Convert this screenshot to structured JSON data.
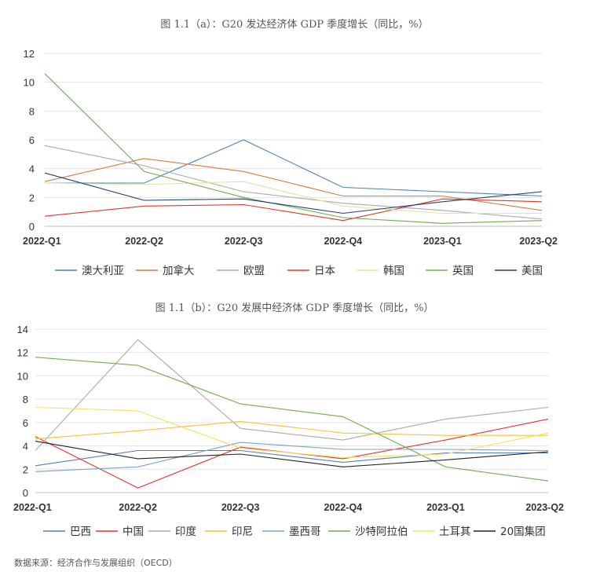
{
  "source": "数据来源：经济合作与发展组织（OECD）",
  "chart_data": [
    {
      "type": "line",
      "title": "图 1.1（a）：G20 发达经济体 GDP 季度增长（同比，%）",
      "categories": [
        "2022-Q1",
        "2022-Q2",
        "2022-Q3",
        "2022-Q4",
        "2023-Q1",
        "2023-Q2"
      ],
      "ylim": [
        0,
        12
      ],
      "yticks": [
        0,
        2,
        4,
        6,
        8,
        10,
        12
      ],
      "grid": "horizontal",
      "legend_position": "bottom",
      "series": [
        {
          "name": "澳大利亚",
          "color": "#4f7fbf",
          "values": [
            3.0,
            3.0,
            6.0,
            2.7,
            2.4,
            2.1
          ]
        },
        {
          "name": "加拿大",
          "color": "#d67a45",
          "values": [
            3.1,
            4.7,
            3.8,
            2.1,
            2.1,
            1.1
          ]
        },
        {
          "name": "欧盟",
          "color": "#a9a9a9",
          "values": [
            5.6,
            4.2,
            2.4,
            1.6,
            1.1,
            0.5
          ]
        },
        {
          "name": "日本",
          "color": "#e0382c",
          "values": [
            0.7,
            1.4,
            1.5,
            0.4,
            1.9,
            1.7
          ]
        },
        {
          "name": "韩国",
          "color": "#d9e8a6",
          "values": [
            3.0,
            2.9,
            3.1,
            1.4,
            0.9,
            0.9
          ]
        },
        {
          "name": "英国",
          "color": "#72ab4e",
          "values": [
            10.6,
            3.8,
            2.0,
            0.6,
            0.2,
            0.4
          ]
        },
        {
          "name": "美国",
          "color": "#253f6b",
          "values": [
            3.7,
            1.8,
            1.9,
            0.9,
            1.7,
            2.4
          ]
        }
      ]
    },
    {
      "type": "line",
      "title": "图 1.1（b）：G20 发展中经济体 GDP 季度增长（同比，%）",
      "categories": [
        "2022-Q1",
        "2022-Q2",
        "2022-Q3",
        "2022-Q4",
        "2023-Q1",
        "2023-Q2"
      ],
      "ylim": [
        0,
        14
      ],
      "yticks": [
        0,
        2,
        4,
        6,
        8,
        10,
        12,
        14
      ],
      "grid": "horizontal",
      "legend_position": "bottom",
      "series": [
        {
          "name": "巴西",
          "color": "#4f7fbf",
          "values": [
            2.3,
            3.6,
            3.6,
            2.6,
            3.4,
            3.4
          ]
        },
        {
          "name": "中国",
          "color": "#e0382c",
          "values": [
            4.8,
            0.4,
            3.9,
            2.9,
            4.5,
            6.3
          ]
        },
        {
          "name": "印度",
          "color": "#a9a9a9",
          "values": [
            3.6,
            13.1,
            5.5,
            4.5,
            6.3,
            7.3
          ]
        },
        {
          "name": "印尼",
          "color": "#f2c23e",
          "values": [
            4.6,
            5.3,
            6.1,
            5.1,
            4.9,
            4.9
          ]
        },
        {
          "name": "墨西哥",
          "color": "#7aa2cd",
          "values": [
            1.8,
            2.2,
            4.3,
            3.7,
            3.7,
            3.6
          ]
        },
        {
          "name": "沙特阿拉伯",
          "color": "#72ab4e",
          "values": [
            11.6,
            10.9,
            7.6,
            6.5,
            2.2,
            1.0
          ]
        },
        {
          "name": "土耳其",
          "color": "#f5e15a",
          "values": [
            7.3,
            7.0,
            3.8,
            3.0,
            3.3,
            5.1
          ]
        },
        {
          "name": "20国集团",
          "color": "#222222",
          "values": [
            4.4,
            2.9,
            3.3,
            2.2,
            2.8,
            3.5
          ]
        }
      ]
    }
  ]
}
